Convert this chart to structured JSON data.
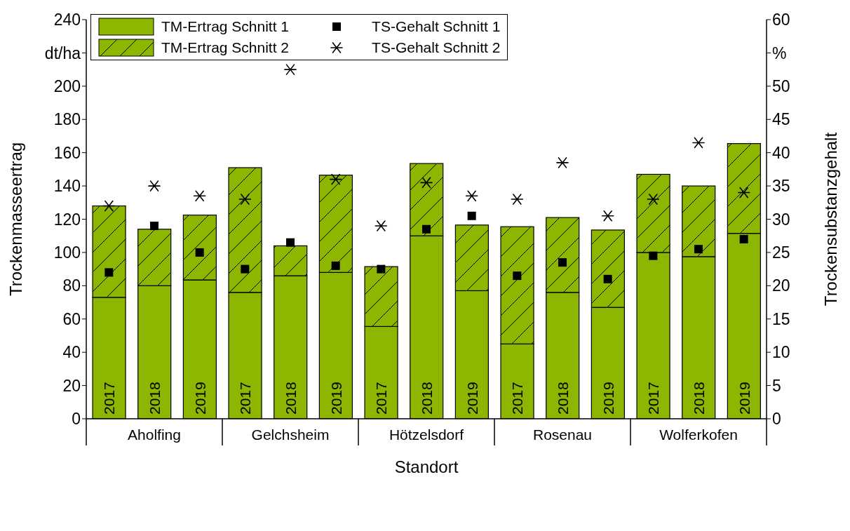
{
  "chart_data": {
    "type": "bar",
    "xlabel": "Standort",
    "ylabel": "Trockenmasseertrag",
    "y2label": "Trockensubstanzgehalt",
    "categories": [
      "2017",
      "2018",
      "2019",
      "2017",
      "2018",
      "2019",
      "2017",
      "2018",
      "2019",
      "2017",
      "2018",
      "2019",
      "2017",
      "2018",
      "2019"
    ],
    "annotations": [
      "Aholfing",
      "Gelchsheim",
      "Hötzelsdorf",
      "Rosenau",
      "Wolferkofen"
    ],
    "stacked": true,
    "series": [
      {
        "name": "TM-Ertrag Schnitt 1",
        "color": "#8db600",
        "values": [
          73,
          80,
          83.5,
          76,
          86,
          88,
          55.5,
          110,
          77,
          45,
          76,
          67,
          100,
          97.5,
          111.5
        ]
      },
      {
        "name": "TM-Ertrag Schnitt 2",
        "color": "#8db600",
        "values": [
          55,
          34,
          39,
          75,
          18,
          58.5,
          36,
          43.5,
          39.5,
          70.5,
          45,
          46.5,
          47,
          42.5,
          54
        ]
      },
      {
        "name": "TS-Gehalt Schnitt 1",
        "type": "scatter",
        "axis": "y2",
        "marker": "square",
        "color": "#000000",
        "values": [
          22,
          29,
          25,
          22.5,
          26.5,
          23,
          22.5,
          28.5,
          30.5,
          21.5,
          23.5,
          21,
          24.5,
          25.5,
          27
        ]
      },
      {
        "name": "TS-Gehalt Schnitt 2",
        "type": "scatter",
        "axis": "y2",
        "marker": "cross",
        "color": "#000000",
        "values": [
          32,
          35,
          33.5,
          33,
          52.5,
          36,
          29,
          35.5,
          33.5,
          33,
          38.5,
          30.5,
          33,
          41.5,
          34
        ]
      }
    ],
    "ylim": [
      0,
      240
    ],
    "yticks": [
      0,
      20,
      40,
      60,
      80,
      100,
      120,
      140,
      160,
      180,
      200,
      {
        "value": 220,
        "label": "dt/ha"
      },
      240
    ],
    "y2lim": [
      0,
      60
    ],
    "y2ticks": [
      0,
      5,
      10,
      15,
      20,
      25,
      30,
      35,
      40,
      45,
      50,
      {
        "value": 55,
        "label": "%"
      },
      60
    ],
    "grid": false,
    "legend": "top left"
  }
}
